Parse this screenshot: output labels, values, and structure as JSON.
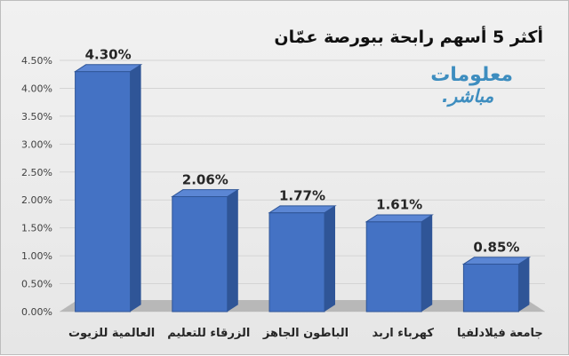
{
  "chart_data": {
    "type": "bar",
    "title": "أكثر 5 أسهم رابحة ببورصة عمّان",
    "categories": [
      "العالمية للزيوت",
      "الزرقاء للتعليم",
      "الباطون الجاهز",
      "كهرباء اربد",
      "جامعة فيلادلفيا"
    ],
    "values": [
      4.3,
      2.06,
      1.77,
      1.61,
      0.85
    ],
    "value_labels": [
      "4.30%",
      "2.06%",
      "1.77%",
      "1.61%",
      "0.85%"
    ],
    "ylim": [
      0,
      4.5
    ],
    "yticks": [
      "0.00%",
      "0.50%",
      "1.00%",
      "1.50%",
      "2.00%",
      "2.50%",
      "3.00%",
      "3.50%",
      "4.00%",
      "4.50%"
    ],
    "grid": true,
    "xlabel": "",
    "ylabel": "",
    "bar_color": "#4472c4"
  },
  "logo": {
    "line1": "معلومات",
    "line2": "مباشر."
  }
}
